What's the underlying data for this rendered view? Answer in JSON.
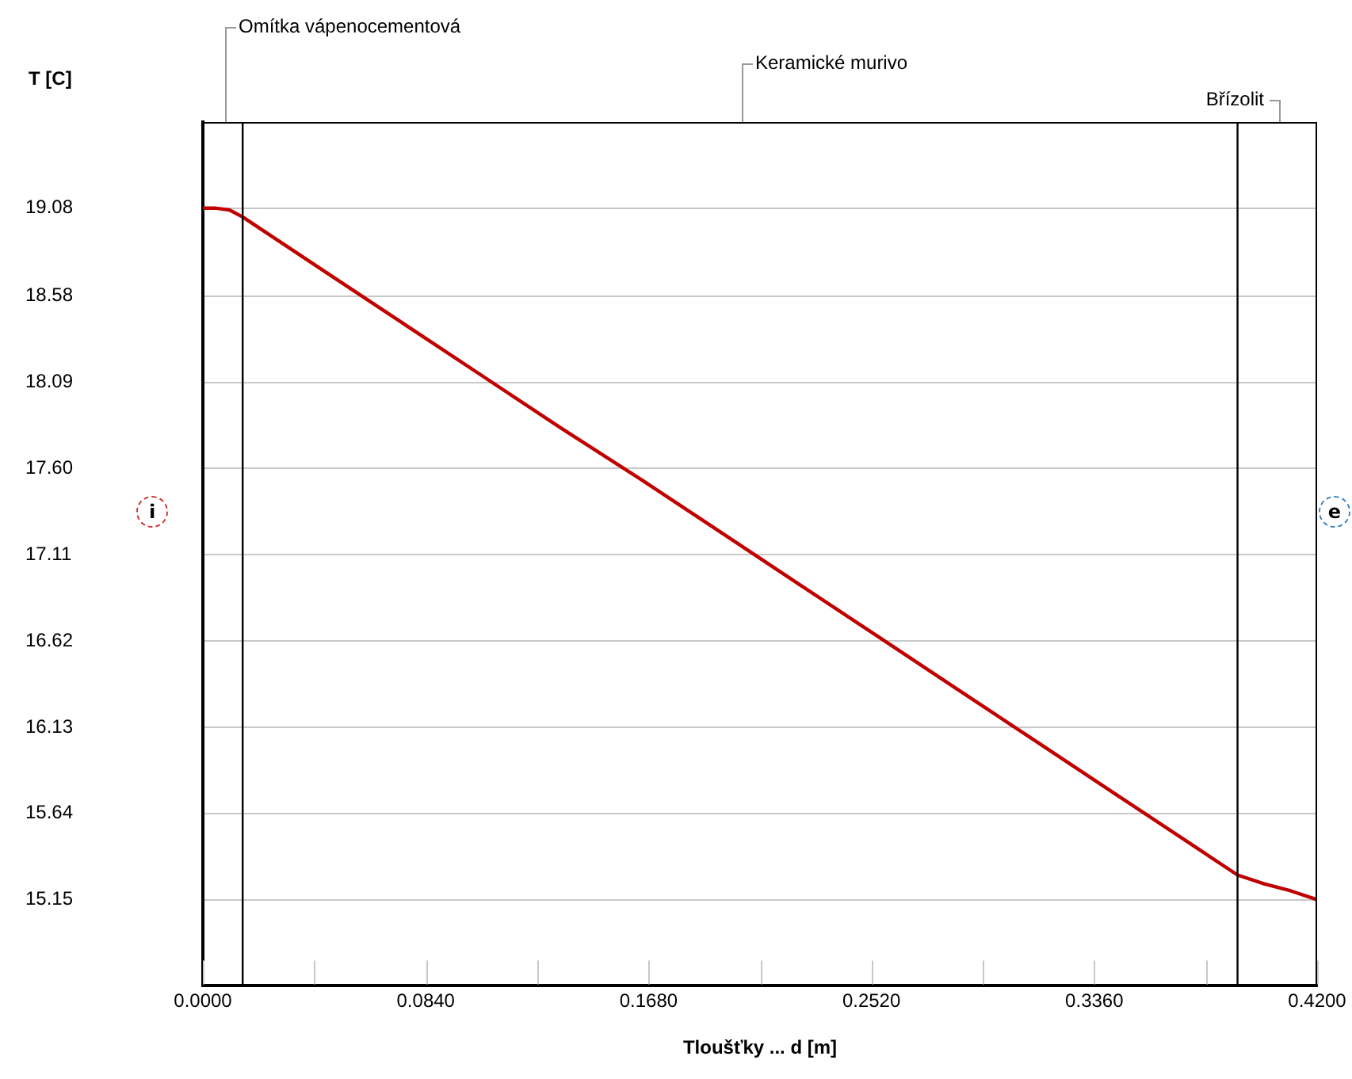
{
  "chart_data": {
    "type": "line",
    "xlabel": "Tloušťky ... d [m]",
    "ylabel": "T [C]",
    "x": [
      0,
      0.005,
      0.01,
      0.015,
      0.045,
      0.075,
      0.105,
      0.135,
      0.165,
      0.195,
      0.225,
      0.255,
      0.285,
      0.315,
      0.345,
      0.375,
      0.39,
      0.4,
      0.41,
      0.42
    ],
    "series": [
      {
        "color": "#c00000",
        "values": [
          19.08,
          19.08,
          19.07,
          19.03,
          18.73,
          18.43,
          18.13,
          17.83,
          17.54,
          17.24,
          16.94,
          16.64,
          16.34,
          16.04,
          15.74,
          15.44,
          15.29,
          15.24,
          15.2,
          15.15
        ]
      }
    ],
    "xlim": [
      0,
      0.42
    ],
    "xticks": [
      {
        "value": 0,
        "label": "0.0000"
      },
      {
        "value": 0.042,
        "label": null
      },
      {
        "value": 0.084,
        "label": "0.0840"
      },
      {
        "value": 0.126,
        "label": null
      },
      {
        "value": 0.168,
        "label": "0.1680"
      },
      {
        "value": 0.21,
        "label": null
      },
      {
        "value": 0.252,
        "label": "0.2520"
      },
      {
        "value": 0.294,
        "label": null
      },
      {
        "value": 0.336,
        "label": "0.3360"
      },
      {
        "value": 0.378,
        "label": null
      },
      {
        "value": 0.42,
        "label": "0.4200"
      }
    ],
    "ylim": [
      14.66,
      19.57
    ],
    "yticks": [
      {
        "value": 15.15,
        "label": "15.15"
      },
      {
        "value": 15.64,
        "label": "15.64"
      },
      {
        "value": 16.13,
        "label": "16.13"
      },
      {
        "value": 16.62,
        "label": "16.62"
      },
      {
        "value": 17.11,
        "label": "17.11"
      },
      {
        "value": 17.6,
        "label": "17.60"
      },
      {
        "value": 18.09,
        "label": "18.09"
      },
      {
        "value": 18.58,
        "label": "18.58"
      },
      {
        "value": 19.08,
        "label": "19.08"
      }
    ],
    "ref_lines": [
      {
        "axis": "x",
        "value": 0.015,
        "color": "#000000"
      },
      {
        "axis": "x",
        "value": 0.39,
        "color": "#000000"
      }
    ],
    "annotations": [
      "Omítka vápenocementová",
      "Keramické murivo",
      "Břízolit",
      "i",
      "e"
    ],
    "grid": "y",
    "legend": false,
    "marker": "none",
    "line_style": "solid"
  }
}
